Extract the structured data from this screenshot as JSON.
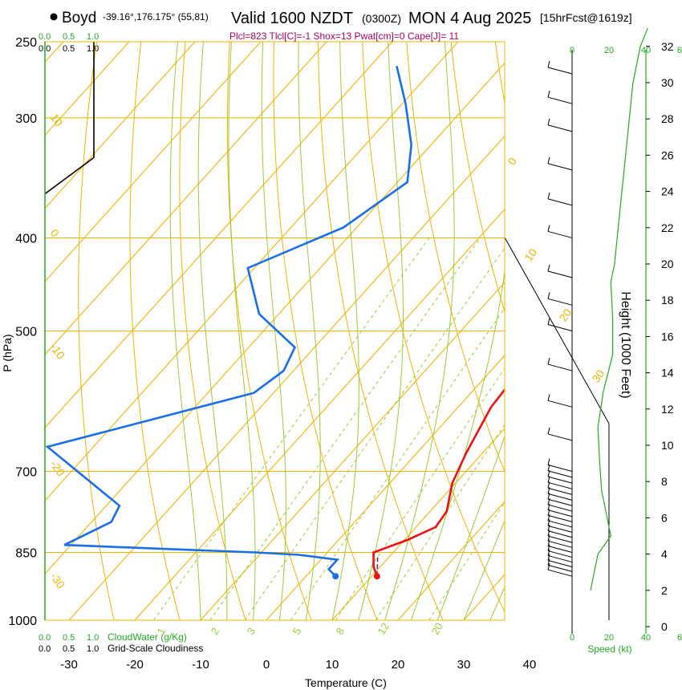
{
  "header": {
    "station": "Boyd",
    "coords": "-39.16°,176.175° (55,81)",
    "valid": "Valid 1600 NZDT",
    "zulu": "(0300Z)",
    "date": "MON 4 Aug 2025",
    "forecast": "[15hrFcst@1619z]",
    "params": "Plcl=823 Tlcl[C]=-1 Shox=13 Pwat[cm]=0 Cape[J]= 11"
  },
  "colors": {
    "temperature": "#ee1111",
    "dewpoint": "#1a6fe8",
    "isotherm": "#f0b400",
    "dry_adiabat": "#f0b400",
    "moist_adiabat": "#99cc33",
    "mixing_ratio": "#99cc33",
    "cloud": "#22aa22",
    "params": "#aa0066"
  },
  "scales": {
    "cloudwater_ticks": [
      "0.0",
      "0.5",
      "1.0"
    ],
    "cloudwater_label": "CloudWater (g/Kg)",
    "cloudiness_ticks": [
      "0.0",
      "0.5",
      "1.0"
    ],
    "cloudiness_label": "Grid-Scale Cloudiness",
    "speed_ticks": [
      "0",
      "20",
      "40",
      "6"
    ],
    "speed_label": "Speed (kt)"
  },
  "chart_data": {
    "type": "skew-t",
    "title": "Boyd sounding",
    "xlabel": "Temperature (C)",
    "ylabel": "P (hPa)",
    "height_label": "Height (1000 Feet)",
    "xlim": [
      -35,
      45
    ],
    "ylim_hpa": [
      1000,
      250
    ],
    "x_ticks": [
      -30,
      -20,
      -10,
      0,
      10,
      20,
      30,
      40
    ],
    "p_ticks": [
      250,
      300,
      400,
      500,
      700,
      850,
      1000
    ],
    "height_ticks": [
      0,
      2,
      4,
      6,
      8,
      10,
      12,
      14,
      16,
      18,
      20,
      22,
      24,
      26,
      28,
      30,
      32
    ],
    "isotherm_labels": [
      0,
      10,
      20,
      30,
      10,
      -10,
      0,
      -20,
      -30
    ],
    "mixing_ratio_labels": [
      "1",
      "2",
      "3",
      "5",
      "8",
      "12",
      "20"
    ],
    "temperature_profile": [
      {
        "p": 900,
        "t": 10.8
      },
      {
        "p": 880,
        "t": 9.0
      },
      {
        "p": 850,
        "t": 7.0
      },
      {
        "p": 825,
        "t": 10.5
      },
      {
        "p": 800,
        "t": 13.0
      },
      {
        "p": 770,
        "t": 12.5
      },
      {
        "p": 720,
        "t": 9.5
      },
      {
        "p": 670,
        "t": 7.5
      },
      {
        "p": 600,
        "t": 5.0
      },
      {
        "p": 560,
        "t": 4.5
      },
      {
        "p": 520,
        "t": 2.5
      },
      {
        "p": 470,
        "t": -0.5
      },
      {
        "p": 440,
        "t": -4.5
      },
      {
        "p": 400,
        "t": -7.5
      },
      {
        "p": 350,
        "t": -14.5
      },
      {
        "p": 320,
        "t": -20.0
      },
      {
        "p": 290,
        "t": -27.0
      },
      {
        "p": 265,
        "t": -33.0
      }
    ],
    "dewpoint_profile": [
      {
        "p": 900,
        "t": 4.5
      },
      {
        "p": 885,
        "t": 2.5
      },
      {
        "p": 865,
        "t": 2.5
      },
      {
        "p": 855,
        "t": -4.0
      },
      {
        "p": 850,
        "t": -11.0
      },
      {
        "p": 835,
        "t": -41.0
      },
      {
        "p": 790,
        "t": -37.0
      },
      {
        "p": 760,
        "t": -38.0
      },
      {
        "p": 660,
        "t": -57.0
      },
      {
        "p": 580,
        "t": -33.0
      },
      {
        "p": 550,
        "t": -31.5
      },
      {
        "p": 520,
        "t": -33.0
      },
      {
        "p": 480,
        "t": -43.0
      },
      {
        "p": 430,
        "t": -51.0
      },
      {
        "p": 390,
        "t": -42.0
      },
      {
        "p": 350,
        "t": -38.5
      },
      {
        "p": 320,
        "t": -43.0
      },
      {
        "p": 290,
        "t": -49.5
      },
      {
        "p": 265,
        "t": -56.0
      }
    ],
    "cloud_water_profile": [
      {
        "p": 1000,
        "v": 0.0
      },
      {
        "p": 250,
        "v": 0.0
      }
    ],
    "cloudiness_profile": [
      {
        "p": 250,
        "v": 1.0
      },
      {
        "p": 330,
        "v": 1.0
      },
      {
        "p": 360,
        "v": 0.0
      }
    ],
    "wind_speed_profile": [
      {
        "h": 2.0,
        "s": 10
      },
      {
        "h": 3.0,
        "s": 12
      },
      {
        "h": 4.0,
        "s": 14
      },
      {
        "h": 5.0,
        "s": 21
      },
      {
        "h": 6.0,
        "s": 19
      },
      {
        "h": 7.5,
        "s": 16
      },
      {
        "h": 9.0,
        "s": 15
      },
      {
        "h": 11.0,
        "s": 14
      },
      {
        "h": 13.0,
        "s": 17
      },
      {
        "h": 15.0,
        "s": 22
      },
      {
        "h": 17.0,
        "s": 22
      },
      {
        "h": 19.0,
        "s": 21
      },
      {
        "h": 20.0,
        "s": 23
      },
      {
        "h": 22.0,
        "s": 25
      },
      {
        "h": 24.0,
        "s": 27
      },
      {
        "h": 26.0,
        "s": 29
      },
      {
        "h": 28.0,
        "s": 31
      },
      {
        "h": 30.0,
        "s": 33
      },
      {
        "h": 32.0,
        "s": 37
      },
      {
        "h": 33.0,
        "s": 41
      }
    ]
  }
}
